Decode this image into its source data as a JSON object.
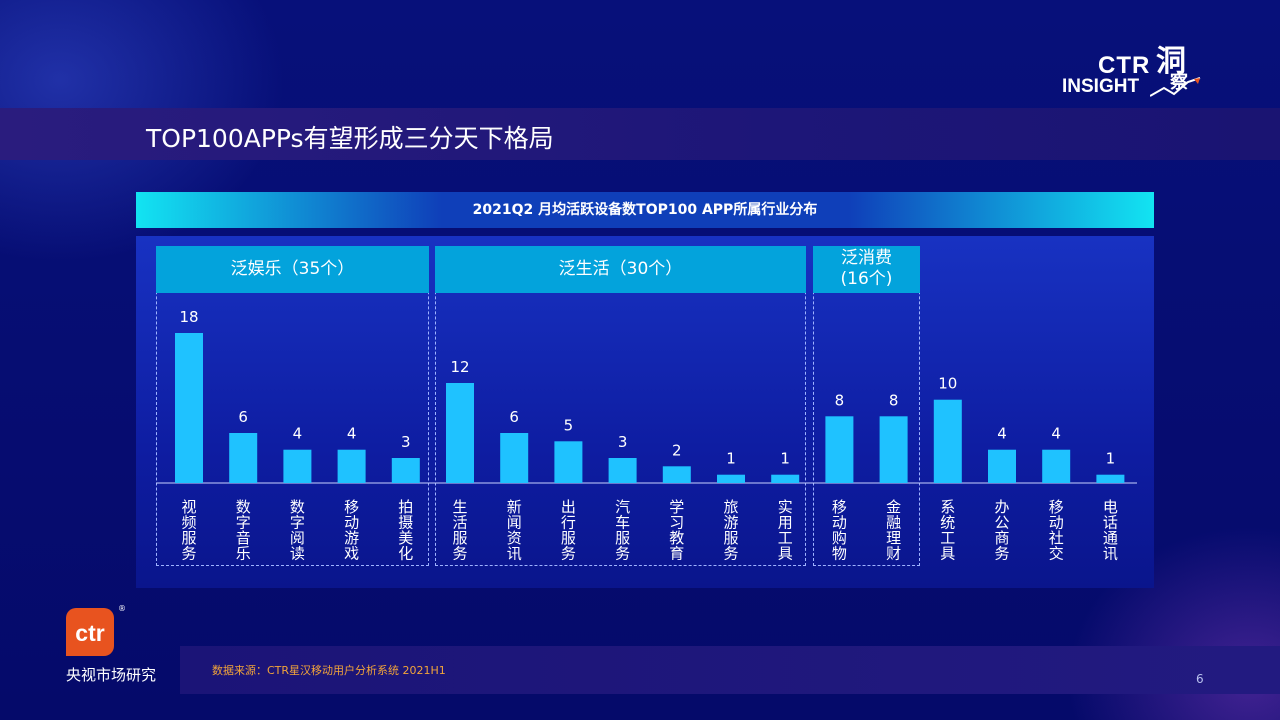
{
  "logo": {
    "brand": "CTR",
    "sub": "INSIGHT",
    "cn_1": "洞",
    "cn_2": "察"
  },
  "page_title": "TOP100APPs有望形成三分天下格局",
  "chart_title": "2021Q2 月均活跃设备数TOP100 APP所属行业分布",
  "groups": [
    {
      "label": "泛娱乐（35个）"
    },
    {
      "label": "泛生活（30个）"
    },
    {
      "label_line1": "泛消费",
      "label_line2": "(16个)"
    }
  ],
  "chart_data": {
    "type": "bar",
    "title": "2021Q2 月均活跃设备数TOP100 APP所属行业分布",
    "categories": [
      "视频服务",
      "数字音乐",
      "数字阅读",
      "移动游戏",
      "拍摄美化",
      "生活服务",
      "新闻资讯",
      "出行服务",
      "汽车服务",
      "学习教育",
      "旅游服务",
      "实用工具",
      "移动购物",
      "金融理财",
      "系统工具",
      "办公商务",
      "移动社交",
      "电话通讯"
    ],
    "values": [
      18,
      6,
      4,
      4,
      3,
      12,
      6,
      5,
      3,
      2,
      1,
      1,
      8,
      8,
      10,
      4,
      4,
      1
    ],
    "groups": [
      {
        "name": "泛娱乐（35个）",
        "categories": [
          "视频服务",
          "数字音乐",
          "数字阅读",
          "移动游戏",
          "拍摄美化"
        ]
      },
      {
        "name": "泛生活（30个）",
        "categories": [
          "生活服务",
          "新闻资讯",
          "出行服务",
          "汽车服务",
          "学习教育",
          "旅游服务",
          "实用工具"
        ]
      },
      {
        "name": "泛消费(16个)",
        "categories": [
          "移动购物",
          "金融理财"
        ]
      }
    ],
    "ylim": [
      0,
      18
    ],
    "grid": false,
    "bar_color": "#1fc2ff"
  },
  "footer": {
    "company": "央视市场研究",
    "ctr_logo": "ctr",
    "registered": "®",
    "source": "数据来源：CTR星汉移动用户分析系统 2021H1",
    "page": "6"
  },
  "colors": {
    "background": "#050a6e",
    "accent": "#03a3dc",
    "bar": "#1fc2ff",
    "source_text": "#f2a43a"
  }
}
